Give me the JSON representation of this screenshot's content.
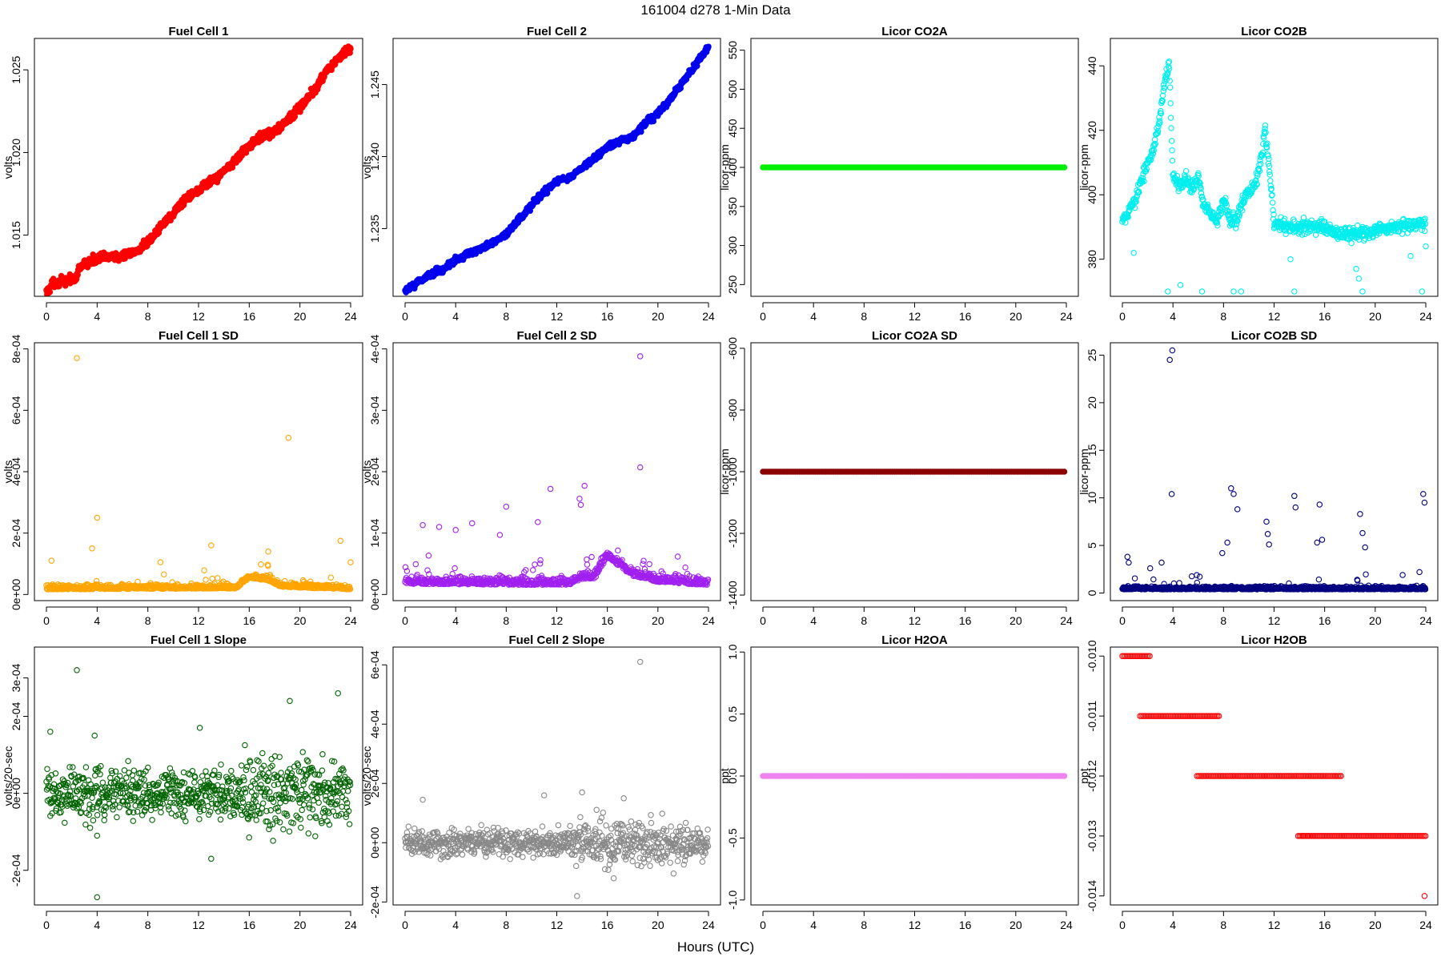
{
  "figure": {
    "title": "161004   d278   1-Min Data",
    "xlabel": "Hours (UTC)"
  },
  "chart_data": [
    {
      "id": "fc1",
      "type": "scatter",
      "title": "Fuel Cell 1",
      "ylabel": "volts",
      "color": "#ff0000",
      "fill": true,
      "xlim": [
        0,
        24
      ],
      "ylim": [
        1.0113,
        1.0269
      ],
      "yticks": [
        1.015,
        1.02,
        1.025
      ],
      "ytick_labels": [
        "1.015",
        "1.020",
        "1.025"
      ],
      "xticks": [
        0,
        4,
        8,
        12,
        16,
        20,
        24
      ],
      "trend": [
        [
          0,
          1.0115
        ],
        [
          0.5,
          1.0121
        ],
        [
          1.5,
          1.0122
        ],
        [
          2.3,
          1.0124
        ],
        [
          2.6,
          1.013
        ],
        [
          3,
          1.0132
        ],
        [
          4,
          1.0136
        ],
        [
          5,
          1.0137
        ],
        [
          6,
          1.0137
        ],
        [
          7,
          1.014
        ],
        [
          8,
          1.0145
        ],
        [
          9,
          1.0155
        ],
        [
          10,
          1.0163
        ],
        [
          11,
          1.0172
        ],
        [
          12,
          1.0178
        ],
        [
          13,
          1.0182
        ],
        [
          14,
          1.0189
        ],
        [
          15,
          1.0196
        ],
        [
          16,
          1.0204
        ],
        [
          17,
          1.021
        ],
        [
          18,
          1.0212
        ],
        [
          19,
          1.0219
        ],
        [
          20,
          1.0228
        ],
        [
          21,
          1.0236
        ],
        [
          22,
          1.0248
        ],
        [
          23,
          1.0257
        ],
        [
          24,
          1.0263
        ]
      ],
      "noise": 0.00018
    },
    {
      "id": "fc2",
      "type": "scatter",
      "title": "Fuel Cell 2",
      "ylabel": "volts",
      "color": "#0000ee",
      "fill": true,
      "xlim": [
        0,
        24
      ],
      "ylim": [
        1.2303,
        1.2482
      ],
      "yticks": [
        1.235,
        1.24,
        1.245
      ],
      "ytick_labels": [
        "1.235",
        "1.240",
        "1.245"
      ],
      "xticks": [
        0,
        4,
        8,
        12,
        16,
        20,
        24
      ],
      "trend": [
        [
          0,
          1.2306
        ],
        [
          1,
          1.2313
        ],
        [
          2,
          1.2318
        ],
        [
          3,
          1.2322
        ],
        [
          4,
          1.2328
        ],
        [
          5,
          1.2333
        ],
        [
          6,
          1.2336
        ],
        [
          7,
          1.2341
        ],
        [
          8,
          1.2346
        ],
        [
          9,
          1.2356
        ],
        [
          10,
          1.2366
        ],
        [
          11,
          1.2375
        ],
        [
          12,
          1.2383
        ],
        [
          13,
          1.2385
        ],
        [
          14,
          1.2392
        ],
        [
          15,
          1.2399
        ],
        [
          16,
          1.2407
        ],
        [
          17,
          1.2411
        ],
        [
          18,
          1.2414
        ],
        [
          19,
          1.2423
        ],
        [
          20,
          1.243
        ],
        [
          21,
          1.244
        ],
        [
          22,
          1.2452
        ],
        [
          23,
          1.2464
        ],
        [
          24,
          1.2476
        ]
      ],
      "noise": 0.00015
    },
    {
      "id": "co2a",
      "type": "scatter",
      "title": "Licor CO2A",
      "ylabel": "licor-ppm",
      "color": "#00ee00",
      "fill": true,
      "xlim": [
        0,
        24
      ],
      "ylim": [
        235,
        565
      ],
      "yticks": [
        250,
        300,
        350,
        400,
        450,
        500,
        550
      ],
      "ytick_labels": [
        "250",
        "300",
        "350",
        "400",
        "450",
        "500",
        "550"
      ],
      "xticks": [
        0,
        4,
        8,
        12,
        16,
        20,
        24
      ],
      "trend": [
        [
          0,
          400
        ],
        [
          24,
          400
        ]
      ],
      "noise": 0
    },
    {
      "id": "co2b",
      "type": "scatter",
      "title": "Licor CO2B",
      "ylabel": "licor-ppm",
      "color": "#00eeee",
      "fill": false,
      "xlim": [
        0,
        24
      ],
      "ylim": [
        368.5,
        448.5
      ],
      "yticks": [
        380,
        400,
        420,
        440
      ],
      "ytick_labels": [
        "380",
        "400",
        "420",
        "440"
      ],
      "xticks": [
        0,
        4,
        8,
        12,
        16,
        20,
        24
      ],
      "trend": [
        [
          0,
          391
        ],
        [
          0.5,
          395
        ],
        [
          1,
          398
        ],
        [
          1.5,
          405
        ],
        [
          2,
          410
        ],
        [
          2.5,
          414
        ],
        [
          3,
          425
        ],
        [
          3.4,
          436
        ],
        [
          3.7,
          441
        ],
        [
          4,
          406
        ],
        [
          4.5,
          402
        ],
        [
          5,
          405
        ],
        [
          5.5,
          402
        ],
        [
          6,
          405
        ],
        [
          6.5,
          396
        ],
        [
          7,
          394
        ],
        [
          7.5,
          392
        ],
        [
          8,
          398
        ],
        [
          8.5,
          392
        ],
        [
          9,
          392
        ],
        [
          9.5,
          398
        ],
        [
          10,
          401
        ],
        [
          10.5,
          403
        ],
        [
          11,
          412
        ],
        [
          11.3,
          420
        ],
        [
          11.7,
          405
        ],
        [
          12,
          392
        ],
        [
          13,
          390
        ],
        [
          14,
          390
        ],
        [
          15,
          390
        ],
        [
          16,
          390
        ],
        [
          17,
          388
        ],
        [
          18,
          388
        ],
        [
          19,
          388
        ],
        [
          20,
          389
        ],
        [
          21,
          390
        ],
        [
          22,
          390
        ],
        [
          23,
          391
        ],
        [
          24,
          391
        ]
      ],
      "noise": 1.5,
      "outliers": [
        [
          0.9,
          382
        ],
        [
          3.6,
          370
        ],
        [
          4.6,
          372
        ],
        [
          6.3,
          370
        ],
        [
          8.8,
          370
        ],
        [
          9.4,
          370
        ],
        [
          13.6,
          370
        ],
        [
          13.3,
          380
        ],
        [
          18.5,
          377
        ],
        [
          18.7,
          374
        ],
        [
          19.0,
          370
        ],
        [
          23.7,
          370
        ],
        [
          22.8,
          381
        ],
        [
          24,
          384
        ]
      ]
    },
    {
      "id": "fc1sd",
      "type": "scatter",
      "title": "Fuel Cell 1 SD",
      "ylabel": "volts",
      "color": "#ffa500",
      "fill": false,
      "xlim": [
        0,
        24
      ],
      "ylim": [
        -2e-05,
        0.00082
      ],
      "yticks": [
        0,
        0.0002,
        0.0004,
        0.0006,
        0.0008
      ],
      "ytick_labels": [
        "0e+00",
        "2e-04",
        "4e-04",
        "6e-04",
        "8e-04"
      ],
      "xticks": [
        0,
        4,
        8,
        12,
        16,
        20,
        24
      ],
      "trend": [
        [
          0,
          2.2e-05
        ],
        [
          15,
          2.5e-05
        ],
        [
          16,
          6e-05
        ],
        [
          17.5,
          5e-05
        ],
        [
          18.5,
          3e-05
        ],
        [
          24,
          2.2e-05
        ]
      ],
      "noise": 1.4e-05,
      "spike": 5e-05,
      "outliers": [
        [
          2.4,
          0.00077
        ],
        [
          19.1,
          0.00051
        ],
        [
          4.0,
          0.00025
        ],
        [
          3.6,
          0.00015
        ],
        [
          0.4,
          0.00011
        ],
        [
          13,
          0.00016
        ],
        [
          23.2,
          0.000175
        ],
        [
          17.5,
          0.00014
        ],
        [
          9,
          0.000105
        ],
        [
          24,
          0.000105
        ]
      ]
    },
    {
      "id": "fc2sd",
      "type": "scatter",
      "title": "Fuel Cell 2 SD",
      "ylabel": "volts",
      "color": "#a020f0",
      "fill": false,
      "xlim": [
        0,
        24
      ],
      "ylim": [
        -1e-05,
        0.00041
      ],
      "yticks": [
        0,
        0.0001,
        0.0002,
        0.0003,
        0.0004
      ],
      "ytick_labels": [
        "0e+00",
        "1e-04",
        "2e-04",
        "3e-04",
        "4e-04"
      ],
      "xticks": [
        0,
        4,
        8,
        12,
        16,
        20,
        24
      ],
      "trend": [
        [
          0,
          2.2e-05
        ],
        [
          13,
          2e-05
        ],
        [
          14,
          3e-05
        ],
        [
          15,
          3e-05
        ],
        [
          16,
          6.5e-05
        ],
        [
          17,
          5e-05
        ],
        [
          18,
          3.5e-05
        ],
        [
          20,
          2.5e-05
        ],
        [
          24,
          2e-05
        ]
      ],
      "noise": 1.2e-05,
      "spike": 4e-05,
      "outliers": [
        [
          18.6,
          0.000388
        ],
        [
          18.6,
          0.000207
        ],
        [
          14.2,
          0.000177
        ],
        [
          11.5,
          0.000172
        ],
        [
          13.8,
          0.000156
        ],
        [
          13.9,
          0.000146
        ],
        [
          8.0,
          0.000143
        ],
        [
          2.7,
          0.00011
        ],
        [
          4.0,
          0.000105
        ],
        [
          1.4,
          0.000113
        ],
        [
          5.3,
          0.000116
        ],
        [
          10.5,
          0.000118
        ],
        [
          7.5,
          9.7e-05
        ]
      ]
    },
    {
      "id": "co2asd",
      "type": "scatter",
      "title": "Licor CO2A SD",
      "ylabel": "licor-ppm",
      "color": "#8b0000",
      "fill": true,
      "xlim": [
        0,
        24
      ],
      "ylim": [
        -1418,
        -582
      ],
      "yticks": [
        -1400,
        -1200,
        -1000,
        -800,
        -600
      ],
      "ytick_labels": [
        "-1400",
        "-1200",
        "-1000",
        "-800",
        "-600"
      ],
      "xticks": [
        0,
        4,
        8,
        12,
        16,
        20,
        24
      ],
      "trend": [
        [
          0,
          -1000
        ],
        [
          24,
          -1000
        ]
      ],
      "noise": 0
    },
    {
      "id": "co2bsd",
      "type": "scatter",
      "title": "Licor CO2B SD",
      "ylabel": "licor-ppm",
      "color": "#000080",
      "fill": false,
      "xlim": [
        0,
        24
      ],
      "ylim": [
        -0.8,
        26.3
      ],
      "yticks": [
        0,
        5,
        10,
        15,
        20,
        25
      ],
      "ytick_labels": [
        "0",
        "5",
        "10",
        "15",
        "20",
        "25"
      ],
      "xticks": [
        0,
        4,
        8,
        12,
        16,
        20,
        24
      ],
      "trend": [
        [
          0,
          0.5
        ],
        [
          24,
          0.5
        ]
      ],
      "noise": 0.3,
      "spike": 1.5,
      "outliers": [
        [
          3.75,
          24.5
        ],
        [
          3.95,
          25.5
        ],
        [
          3.9,
          10.4
        ],
        [
          8.6,
          11
        ],
        [
          8.8,
          10.4
        ],
        [
          9.1,
          8.8
        ],
        [
          8.3,
          5.3
        ],
        [
          7.9,
          4.2
        ],
        [
          11.4,
          7.5
        ],
        [
          11.5,
          6.2
        ],
        [
          11.6,
          5.1
        ],
        [
          13.6,
          10.2
        ],
        [
          13.7,
          9.0
        ],
        [
          15.6,
          9.3
        ],
        [
          15.4,
          5.3
        ],
        [
          15.8,
          5.6
        ],
        [
          18.8,
          8.3
        ],
        [
          19.0,
          6.3
        ],
        [
          19.2,
          4.8
        ],
        [
          23.8,
          10.4
        ],
        [
          23.9,
          9.5
        ],
        [
          0.4,
          3.8
        ],
        [
          0.5,
          3.2
        ],
        [
          2.2,
          2.6
        ],
        [
          3.1,
          3.2
        ],
        [
          23.5,
          2.2
        ]
      ]
    },
    {
      "id": "fc1slope",
      "type": "scatter",
      "title": "Fuel Cell 1 Slope",
      "ylabel": "volts/20-sec",
      "color": "#006400",
      "fill": false,
      "xlim": [
        0,
        24
      ],
      "ylim": [
        -0.00029,
        0.00038
      ],
      "yticks": [
        -0.0002,
        0,
        0.0002,
        0.0003
      ],
      "ytick_labels": [
        "-2e-04",
        "0e+00",
        "2e-04",
        "3e-04"
      ],
      "xticks": [
        0,
        4,
        8,
        12,
        16,
        20,
        24
      ],
      "trend": [
        [
          0,
          0
        ],
        [
          24,
          0
        ]
      ],
      "noise": 4.5e-05,
      "noise_band": [
        [
          15.5,
          7e-05
        ],
        [
          24,
          6e-05
        ]
      ],
      "outliers": [
        [
          2.4,
          0.00032
        ],
        [
          4.0,
          -0.00027
        ],
        [
          19.2,
          0.00024
        ],
        [
          23,
          0.00026
        ],
        [
          12.1,
          0.00017
        ],
        [
          13.0,
          -0.00017
        ],
        [
          0.3,
          0.00016
        ],
        [
          3.8,
          0.00015
        ],
        [
          4.0,
          -0.00011
        ]
      ]
    },
    {
      "id": "fc2slope",
      "type": "scatter",
      "title": "Fuel Cell 2 Slope",
      "ylabel": "volts/20-sec",
      "color": "#888888",
      "fill": false,
      "xlim": [
        0,
        24
      ],
      "ylim": [
        -0.00021,
        0.00066
      ],
      "yticks": [
        -0.0002,
        0,
        0.0002,
        0.0004,
        0.0006
      ],
      "ytick_labels": [
        "-2e-04",
        "0e+00",
        "2e-04",
        "4e-04",
        "6e-04"
      ],
      "xticks": [
        0,
        4,
        8,
        12,
        16,
        20,
        24
      ],
      "trend": [
        [
          0,
          0
        ],
        [
          24,
          0
        ]
      ],
      "noise": 3e-05,
      "noise_band": [
        [
          13,
          5e-05
        ],
        [
          18,
          6e-05
        ],
        [
          24,
          4e-05
        ]
      ],
      "outliers": [
        [
          18.6,
          0.00061
        ],
        [
          13.6,
          -0.00018
        ],
        [
          14.0,
          0.00017
        ],
        [
          11.0,
          0.00016
        ],
        [
          1.4,
          0.000145
        ],
        [
          17.3,
          0.00015
        ],
        [
          16.5,
          -0.00012
        ]
      ]
    },
    {
      "id": "h2oa",
      "type": "scatter",
      "title": "Licor H2OA",
      "ylabel": "ppt",
      "color": "#ee82ee",
      "fill": true,
      "xlim": [
        0,
        24
      ],
      "ylim": [
        -1.04,
        1.04
      ],
      "yticks": [
        -1.0,
        -0.5,
        0.0,
        0.5,
        1.0
      ],
      "ytick_labels": [
        "-1.0",
        "-0.5",
        "0.0",
        "0.5",
        "1.0"
      ],
      "xticks": [
        0,
        4,
        8,
        12,
        16,
        20,
        24
      ],
      "trend": [
        [
          0,
          0
        ],
        [
          24,
          0
        ]
      ],
      "noise": 0
    },
    {
      "id": "h2ob",
      "type": "steps",
      "title": "Licor H2OB",
      "ylabel": "ppt",
      "color": "#ff0000",
      "fill": false,
      "xlim": [
        0,
        24
      ],
      "ylim": [
        -0.01415,
        -0.00985
      ],
      "yticks": [
        -0.014,
        -0.013,
        -0.012,
        -0.011,
        -0.01
      ],
      "ytick_labels": [
        "-0.014",
        "-0.013",
        "-0.012",
        "-0.011",
        "-0.010"
      ],
      "xticks": [
        0,
        4,
        8,
        12,
        16,
        20,
        24
      ],
      "segments": [
        [
          0,
          2.2,
          -0.01
        ],
        [
          1.4,
          7.7,
          -0.011
        ],
        [
          5.9,
          17.3,
          -0.012
        ],
        [
          13.9,
          24,
          -0.013
        ]
      ],
      "outliers": [
        [
          23.9,
          -0.014
        ],
        [
          14.3,
          -0.013
        ],
        [
          14.7,
          -0.013
        ]
      ]
    }
  ]
}
